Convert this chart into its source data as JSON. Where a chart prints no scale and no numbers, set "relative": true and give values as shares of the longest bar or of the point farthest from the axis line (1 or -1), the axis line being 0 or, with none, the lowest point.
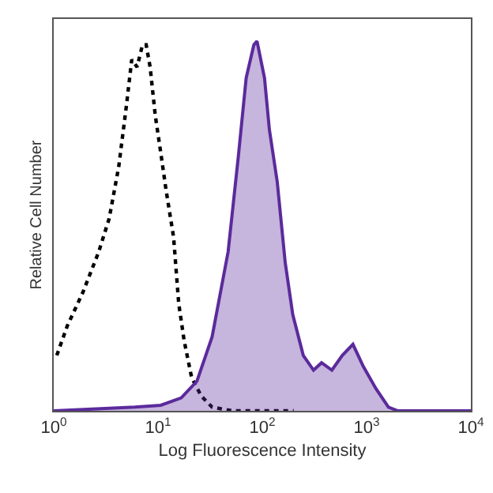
{
  "chart_data": {
    "type": "area",
    "relative": true,
    "xlabel": "Log Fluorescence Intensity",
    "ylabel": "Relative Cell Number",
    "log": "x",
    "xlim": [
      1,
      10000
    ],
    "xticks": [
      {
        "value": 1,
        "label": "10$^{0}$"
      },
      {
        "value": 10,
        "label": "10$^{1}$"
      },
      {
        "value": 100,
        "label": "10$^{2}$"
      },
      {
        "value": 1000,
        "label": "10$^{3}$"
      },
      {
        "value": 10000,
        "label": "10$^{4}$"
      }
    ],
    "tick_labels": "x",
    "grid": false,
    "series": [
      {
        "type": "line",
        "line_style": "dotted",
        "color": "#000000",
        "x": [
          1.07,
          1.35,
          1.9,
          2.7,
          3.4,
          4.2,
          5.0,
          5.6,
          6.3,
          7.1,
          7.7,
          8.4,
          9.4,
          10.6,
          11.9,
          14.1,
          15.8,
          17.8,
          21,
          26,
          33,
          52,
          200
        ],
        "values": [
          0.15,
          0.23,
          0.32,
          0.43,
          0.52,
          0.66,
          0.83,
          0.95,
          0.93,
          0.99,
          0.99,
          0.93,
          0.8,
          0.7,
          0.6,
          0.47,
          0.29,
          0.19,
          0.09,
          0.04,
          0.01,
          0,
          0
        ]
      },
      {
        "color": "#5b2a9c",
        "x": [
          1,
          6,
          10.6,
          16.7,
          23.6,
          33,
          47,
          59,
          70,
          83,
          89,
          105,
          117,
          139,
          166,
          196,
          247,
          310,
          370,
          465,
          585,
          740,
          930,
          1230,
          1620,
          2000,
          10000
        ],
        "values": [
          0,
          0.01,
          0.015,
          0.035,
          0.08,
          0.2,
          0.43,
          0.69,
          0.9,
          0.99,
          1,
          0.9,
          0.76,
          0.62,
          0.4,
          0.26,
          0.15,
          0.11,
          0.13,
          0.11,
          0.15,
          0.18,
          0.12,
          0.06,
          0.01,
          0,
          0
        ]
      }
    ]
  }
}
